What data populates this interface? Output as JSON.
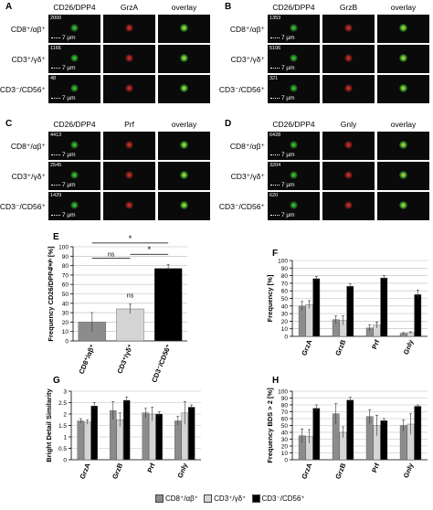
{
  "micro": [
    {
      "label": "A",
      "col2": "GrzA",
      "nums": [
        "2000",
        "1166",
        "48"
      ]
    },
    {
      "label": "B",
      "col2": "GrzB",
      "nums": [
        "1353",
        "5106",
        "321"
      ]
    },
    {
      "label": "C",
      "col2": "Prf",
      "nums": [
        "4413",
        "2545",
        "1429"
      ]
    },
    {
      "label": "D",
      "col2": "Gnly",
      "nums": [
        "6428",
        "3204",
        "620"
      ]
    }
  ],
  "col1": "CD26/DPP4",
  "col3": "overlay",
  "rows": [
    "CD8⁺/αβ⁺",
    "CD3⁺/γδ⁺",
    "CD3⁻/CD56⁺"
  ],
  "scale_label": "7 µm",
  "colors": {
    "s1": "#8c8c8c",
    "s2": "#d4d4d4",
    "s3": "#000000",
    "green": "#3fdc3a",
    "red": "#e8322c",
    "yellow": "#e8e23a"
  },
  "legend": [
    "CD8⁺/αβ⁺",
    "CD3⁺/γδ⁺",
    "CD3⁻/CD56⁺"
  ],
  "chart_data": [
    {
      "label": "E",
      "type": "bar",
      "ylabel": "Frequency CD26/DPP4ʰᶦᵍʰ [%]",
      "ylim": [
        0,
        100
      ],
      "yticks": [
        0,
        10,
        20,
        30,
        40,
        50,
        60,
        70,
        80,
        90,
        100
      ],
      "categories": [
        "CD8⁺/αβ⁺",
        "CD3⁺/γδ⁺",
        "CD3⁻/CD56⁺"
      ],
      "values": [
        20,
        34,
        77
      ],
      "errors": [
        10,
        5,
        4
      ],
      "annotations": [
        "ns",
        "ns",
        "*",
        "*"
      ]
    },
    {
      "label": "F",
      "type": "bar",
      "ylabel": "Frequency [%]",
      "ylim": [
        0,
        100
      ],
      "yticks": [
        0,
        10,
        20,
        30,
        40,
        50,
        60,
        70,
        80,
        90,
        100
      ],
      "categories": [
        "GrzA",
        "GrzB",
        "Prf",
        "Gnly"
      ],
      "series": [
        {
          "values": [
            40,
            22,
            11,
            4
          ],
          "errors": [
            6,
            5,
            4,
            1
          ]
        },
        {
          "values": [
            42,
            21,
            15,
            5
          ],
          "errors": [
            5,
            6,
            4,
            1
          ]
        },
        {
          "values": [
            76,
            66,
            77,
            55
          ],
          "errors": [
            3,
            3,
            3,
            6
          ]
        }
      ]
    },
    {
      "label": "G",
      "type": "bar",
      "ylabel": "Bright Detail Similarity",
      "ylim": [
        0,
        3
      ],
      "yticks": [
        0,
        0.5,
        1,
        1.5,
        2,
        2.5,
        3
      ],
      "categories": [
        "GrzA",
        "GrzB",
        "Prf",
        "Gnly"
      ],
      "series": [
        {
          "values": [
            1.7,
            2.15,
            2.05,
            1.7
          ],
          "errors": [
            0.1,
            0.4,
            0.2,
            0.2
          ]
        },
        {
          "values": [
            1.65,
            1.75,
            2.0,
            2.05
          ],
          "errors": [
            0.1,
            0.3,
            0.3,
            0.5
          ]
        },
        {
          "values": [
            2.35,
            2.6,
            2.0,
            2.3
          ],
          "errors": [
            0.15,
            0.15,
            0.1,
            0.1
          ]
        }
      ]
    },
    {
      "label": "H",
      "type": "bar",
      "ylabel": "Frequency BDS > 2 [%]",
      "ylim": [
        0,
        100
      ],
      "yticks": [
        0,
        10,
        20,
        30,
        40,
        50,
        60,
        70,
        80,
        90,
        100
      ],
      "categories": [
        "GrzA",
        "GrzB",
        "Prf",
        "Gnly"
      ],
      "series": [
        {
          "values": [
            35,
            67,
            63,
            50
          ],
          "errors": [
            10,
            15,
            10,
            8
          ]
        },
        {
          "values": [
            34,
            40,
            50,
            52
          ],
          "errors": [
            10,
            8,
            15,
            15
          ]
        },
        {
          "values": [
            75,
            87,
            57,
            78
          ],
          "errors": [
            5,
            4,
            3,
            2
          ]
        }
      ]
    }
  ]
}
